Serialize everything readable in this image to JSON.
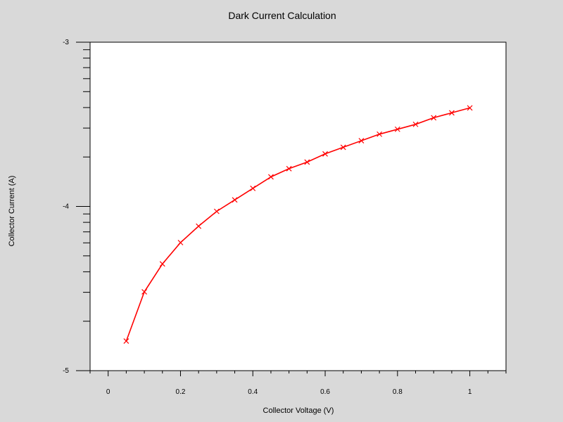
{
  "chart_data": {
    "type": "line",
    "title": "Dark Current Calculation",
    "xlabel": "Collector Voltage (V)",
    "ylabel": "Collector Current (A)",
    "xlim": [
      -0.05,
      1.1
    ],
    "ylim": [
      -5,
      -3
    ],
    "y_scale": "log",
    "x_ticks": [
      0,
      0.2,
      0.4,
      0.6,
      0.8,
      1
    ],
    "x_tick_labels": [
      "0",
      "0.2",
      "0.4",
      "0.6",
      "0.8",
      "1"
    ],
    "y_ticks": [
      -5,
      -4,
      -3
    ],
    "y_tick_labels": [
      "-5",
      "-4",
      "-3"
    ],
    "grid": false,
    "legend": "none",
    "series_color": "#ff0000",
    "series": [
      {
        "marker": "x",
        "x": [
          0.05,
          0.1,
          0.15,
          0.2,
          0.25,
          0.3,
          0.35,
          0.4,
          0.45,
          0.5,
          0.55,
          0.6,
          0.65,
          0.7,
          0.75,
          0.8,
          0.85,
          0.9,
          0.95,
          1.0
        ],
        "y": [
          -4.82,
          -4.52,
          -4.35,
          -4.22,
          -4.12,
          -4.03,
          -3.96,
          -3.89,
          -3.82,
          -3.77,
          -3.73,
          -3.68,
          -3.64,
          -3.6,
          -3.56,
          -3.53,
          -3.5,
          -3.46,
          -3.43,
          -3.4
        ]
      }
    ]
  }
}
